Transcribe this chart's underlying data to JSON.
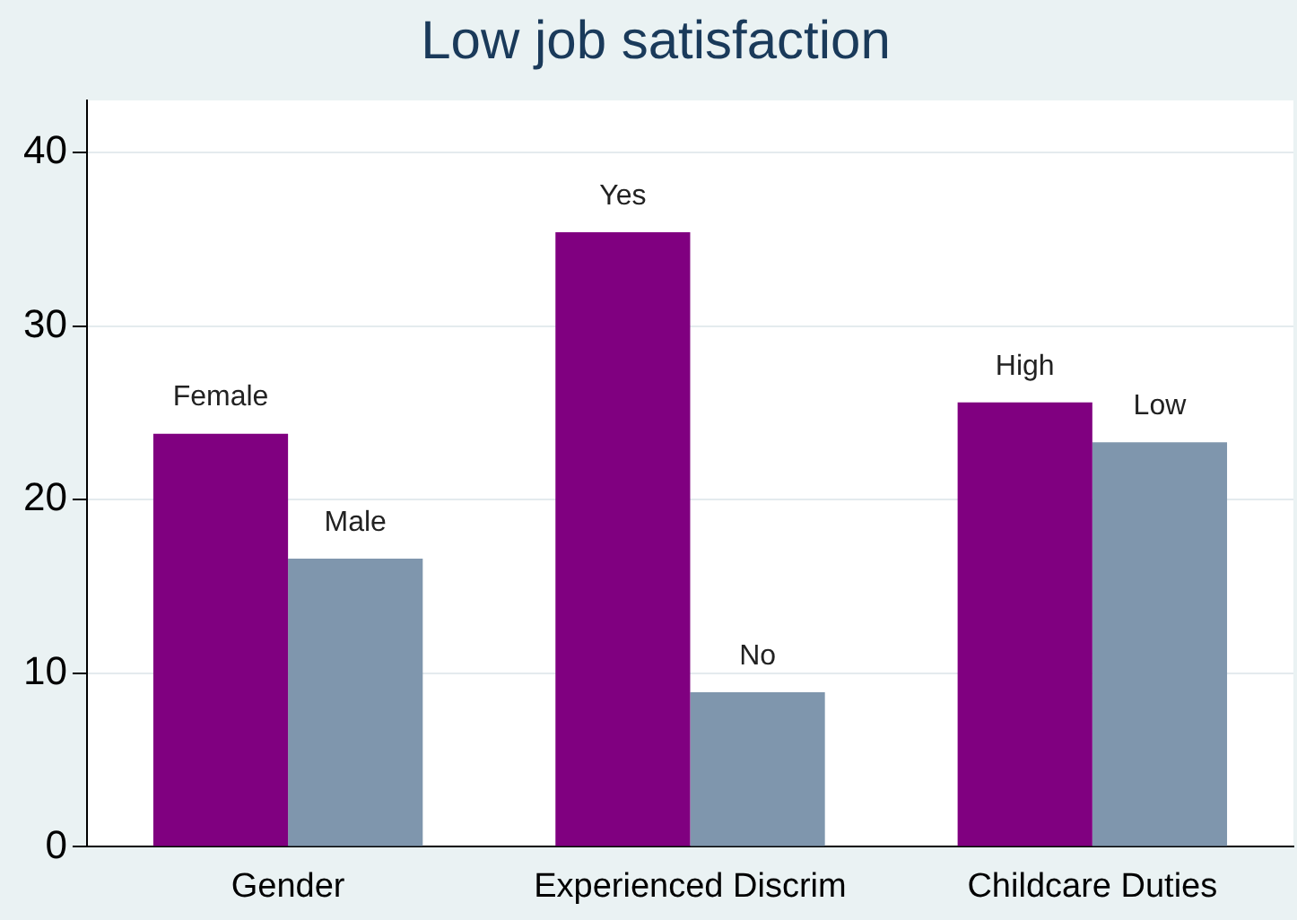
{
  "chart_data": {
    "type": "bar",
    "title": "Low job satisfaction",
    "categories": [
      "Gender",
      "Experienced Discrim",
      "Childcare Duties"
    ],
    "series": [
      {
        "color": "#800080",
        "values": [
          23.8,
          35.4,
          25.6
        ],
        "value_labels": [
          "Female",
          "Yes",
          "High"
        ]
      },
      {
        "color": "#7f96ad",
        "values": [
          16.6,
          8.9,
          23.3
        ],
        "value_labels": [
          "Male",
          "No",
          "Low"
        ]
      }
    ],
    "ylim": [
      0,
      43
    ],
    "yticks": [
      0,
      10,
      20,
      30,
      40
    ],
    "grid": "y",
    "legend": false
  }
}
